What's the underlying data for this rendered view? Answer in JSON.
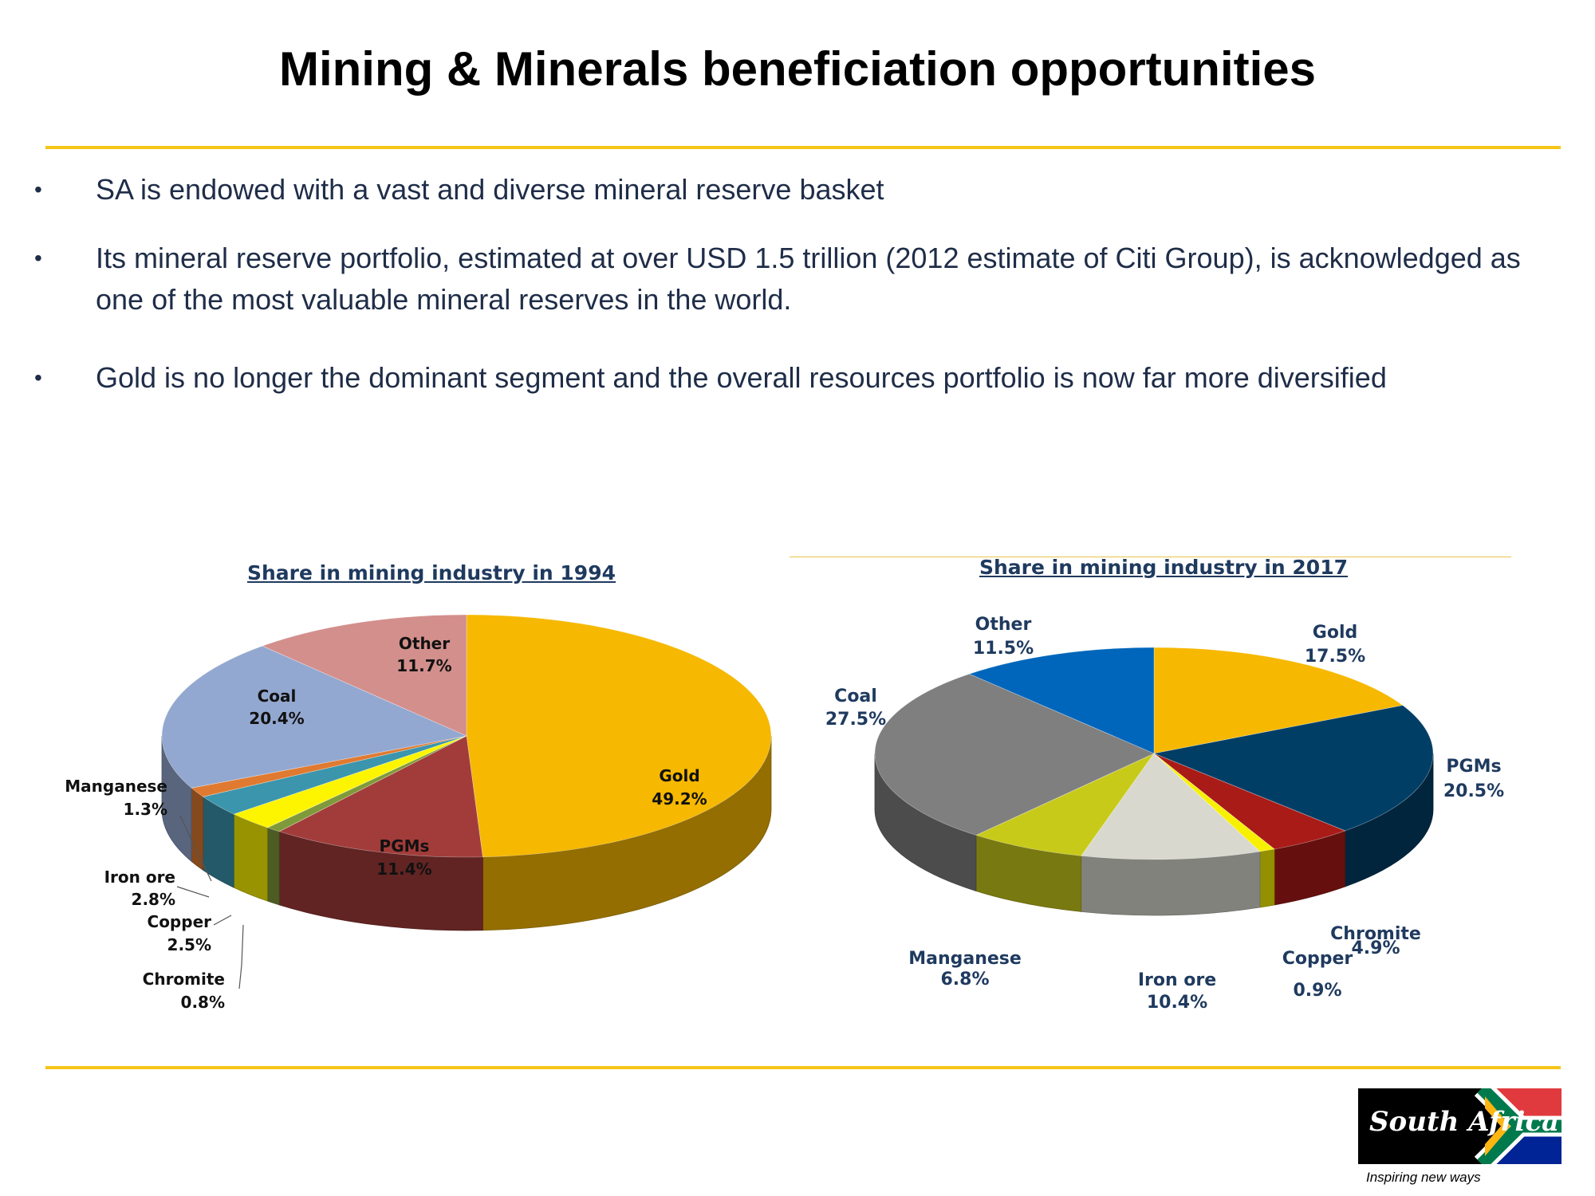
{
  "slide": {
    "title": "Mining & Minerals beneficiation opportunities",
    "bullets": [
      "SA is endowed with a vast and diverse mineral reserve basket",
      "Its mineral reserve portfolio, estimated at over USD 1.5 trillion (2012 estimate of Citi Group), is acknowledged as one of the most valuable mineral reserves in the world.",
      "Gold is no longer the dominant segment and the overall resources portfolio is now far more diversified"
    ],
    "bullet_symbol": "•"
  },
  "chart_data": [
    {
      "type": "pie",
      "title": "Share in mining industry in 1994",
      "categories": [
        "Gold",
        "PGMs",
        "Chromite",
        "Copper",
        "Iron ore",
        "Manganese",
        "Coal",
        "Other"
      ],
      "values": [
        49.2,
        11.4,
        0.8,
        2.5,
        2.8,
        1.3,
        20.4,
        11.7
      ],
      "labels": [
        "49.2%",
        "11.4%",
        "0.8%",
        "2.5%",
        "2.8%",
        "1.3%",
        "20.4%",
        "11.7%"
      ],
      "colors": [
        "#f6b800",
        "#a23c3a",
        "#7f9a3a",
        "#fdf500",
        "#3b95ad",
        "#e07a30",
        "#93a8d0",
        "#d38f8c"
      ]
    },
    {
      "type": "pie",
      "title": "Share in mining industry in 2017",
      "categories": [
        "Gold",
        "PGMs",
        "Chromite",
        "Copper",
        "Iron ore",
        "Manganese",
        "Coal",
        "Other"
      ],
      "values": [
        17.5,
        20.5,
        4.9,
        0.9,
        10.4,
        6.8,
        27.5,
        11.5
      ],
      "labels": [
        "17.5%",
        "20.5%",
        "4.9%",
        "0.9%",
        "10.4%",
        "6.8%",
        "27.5%",
        "11.5%"
      ],
      "colors": [
        "#f6b800",
        "#003e66",
        "#a81b17",
        "#f7f000",
        "#d8d8cf",
        "#c8ca1a",
        "#7f7f7f",
        "#0066bb"
      ]
    }
  ],
  "logo": {
    "wordmark": "South Africa",
    "tagline": "Inspiring new ways",
    "flag_colors": [
      "#e03a3e",
      "#ffffff",
      "#007a4d",
      "#ffb612",
      "#000000",
      "#002395"
    ]
  }
}
